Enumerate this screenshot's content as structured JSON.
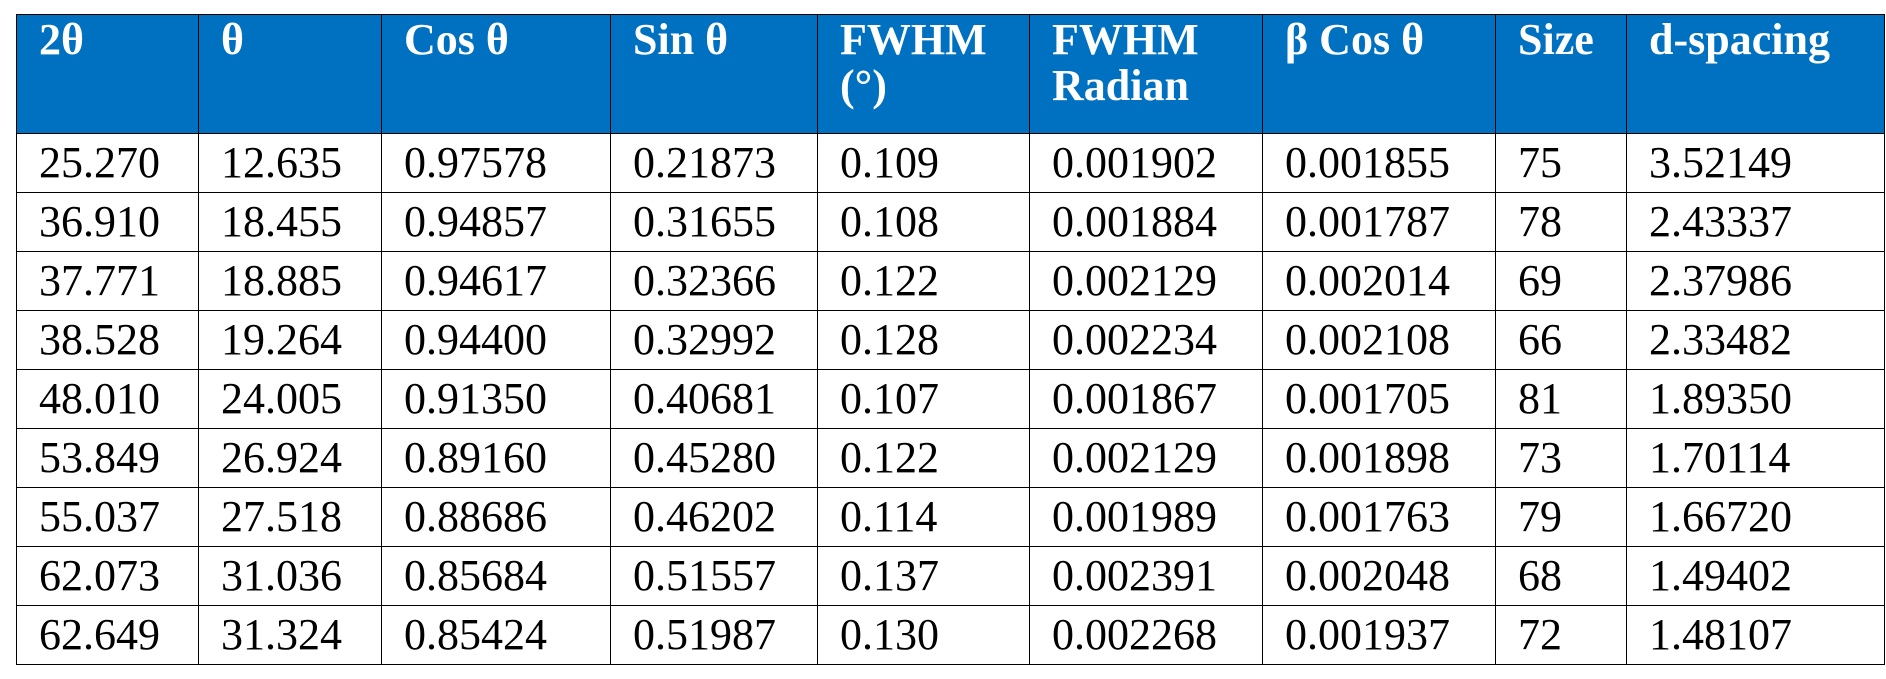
{
  "table": {
    "headers": [
      "2θ",
      "θ",
      "Cos θ",
      "Sin θ",
      "FWHM (°)",
      "FWHM Radian",
      "β Cos θ",
      "Size",
      "d-spacing"
    ],
    "rows": [
      [
        "25.270",
        "12.635",
        "0.97578",
        "0.21873",
        "0.109",
        "0.001902",
        "0.001855",
        "75",
        "3.52149"
      ],
      [
        "36.910",
        "18.455",
        "0.94857",
        "0.31655",
        "0.108",
        "0.001884",
        "0.001787",
        "78",
        "2.43337"
      ],
      [
        "37.771",
        "18.885",
        "0.94617",
        "0.32366",
        "0.122",
        "0.002129",
        "0.002014",
        "69",
        "2.37986"
      ],
      [
        "38.528",
        "19.264",
        "0.94400",
        "0.32992",
        "0.128",
        "0.002234",
        "0.002108",
        "66",
        "2.33482"
      ],
      [
        "48.010",
        "24.005",
        "0.91350",
        "0.40681",
        "0.107",
        "0.001867",
        "0.001705",
        "81",
        "1.89350"
      ],
      [
        "53.849",
        "26.924",
        "0.89160",
        "0.45280",
        "0.122",
        "0.002129",
        "0.001898",
        "73",
        "1.70114"
      ],
      [
        "55.037",
        "27.518",
        "0.88686",
        "0.46202",
        "0.114",
        "0.001989",
        "0.001763",
        "79",
        "1.66720"
      ],
      [
        "62.073",
        "31.036",
        "0.85684",
        "0.51557",
        "0.137",
        "0.002391",
        "0.002048",
        "68",
        "1.49402"
      ],
      [
        "62.649",
        "31.324",
        "0.85424",
        "0.51987",
        "0.130",
        "0.002268",
        "0.001937",
        "72",
        "1.48107"
      ]
    ]
  }
}
